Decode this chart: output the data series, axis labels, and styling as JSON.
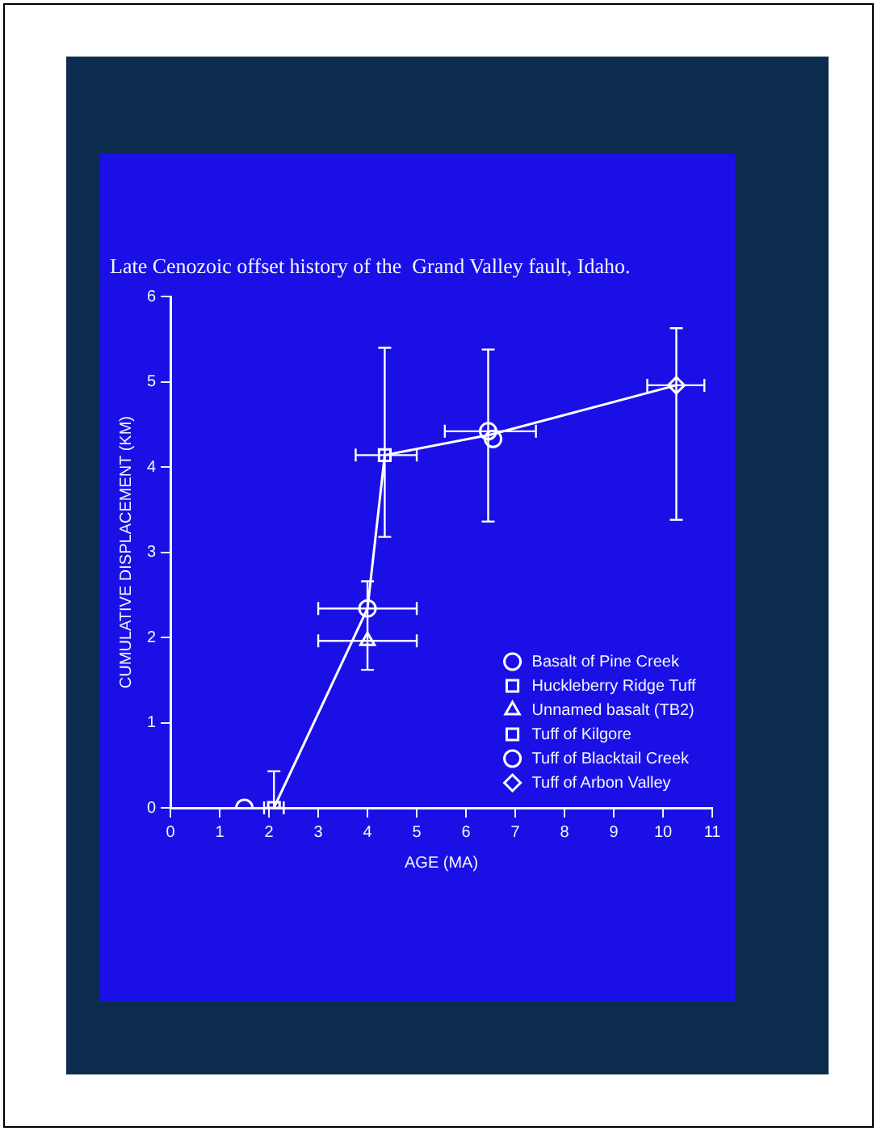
{
  "chart_data": {
    "type": "scatter",
    "title": "Late Cenozoic offset history of the  Grand Valley fault, Idaho.",
    "xlabel": "AGE (MA)",
    "ylabel": "CUMULATIVE DISPLACEMENT (KM)",
    "xlim": [
      0,
      11
    ],
    "xticks": [
      0,
      1,
      2,
      3,
      4,
      5,
      6,
      7,
      8,
      9,
      10,
      11
    ],
    "ylim": [
      0,
      6
    ],
    "yticks": [
      0,
      1,
      2,
      3,
      4,
      5,
      6
    ],
    "grid": false,
    "legend": "bottom right",
    "series": [
      {
        "type": "line",
        "color": "#ffffff",
        "marker": "none",
        "x": [
          2.1,
          4.0,
          4.35,
          6.5,
          10.27
        ],
        "values": [
          0,
          2.34,
          4.14,
          4.38,
          4.96
        ]
      },
      {
        "name": "Basalt of Pine Creek",
        "color": "#ffffff",
        "marker": "circle",
        "x": [
          1.5
        ],
        "values": [
          0
        ]
      },
      {
        "name": "Huckleberry Ridge Tuff",
        "color": "#ffffff",
        "marker": "square",
        "x": [
          2.1
        ],
        "values": [
          0
        ],
        "errors": [
          [
            0,
            0.43
          ]
        ],
        "xerrors": [
          [
            1.9,
            2.3
          ]
        ]
      },
      {
        "name": "Unnamed basalt (TB2)",
        "color": "#ffffff",
        "marker": "triangle",
        "x": [
          4.0
        ],
        "values": [
          1.96
        ],
        "errors": [
          [
            1.62,
            2.66
          ]
        ],
        "xerrors": [
          [
            3.0,
            5.0
          ]
        ]
      },
      {
        "name": "Tuff of Kilgore",
        "color": "#ffffff",
        "marker": "square",
        "x": [
          4.35
        ],
        "values": [
          4.14
        ],
        "errors": [
          [
            3.18,
            5.4
          ]
        ],
        "xerrors": [
          [
            3.76,
            5.0
          ]
        ]
      },
      {
        "name": "Tuff of Blacktail Creek",
        "color": "#ffffff",
        "marker": "circle",
        "x": [
          4.0,
          6.45,
          6.55
        ],
        "values": [
          2.34,
          4.42,
          4.33
        ],
        "errors": [
          null,
          [
            3.36,
            5.38
          ],
          null
        ],
        "xerrors": [
          [
            3.0,
            5.0
          ],
          [
            5.57,
            7.42
          ],
          null
        ]
      },
      {
        "name": "Tuff of Arbon Valley",
        "color": "#ffffff",
        "marker": "diamond",
        "x": [
          10.27
        ],
        "values": [
          4.96
        ],
        "errors": [
          [
            3.38,
            5.63
          ]
        ],
        "xerrors": [
          [
            9.68,
            10.84
          ]
        ]
      }
    ]
  }
}
